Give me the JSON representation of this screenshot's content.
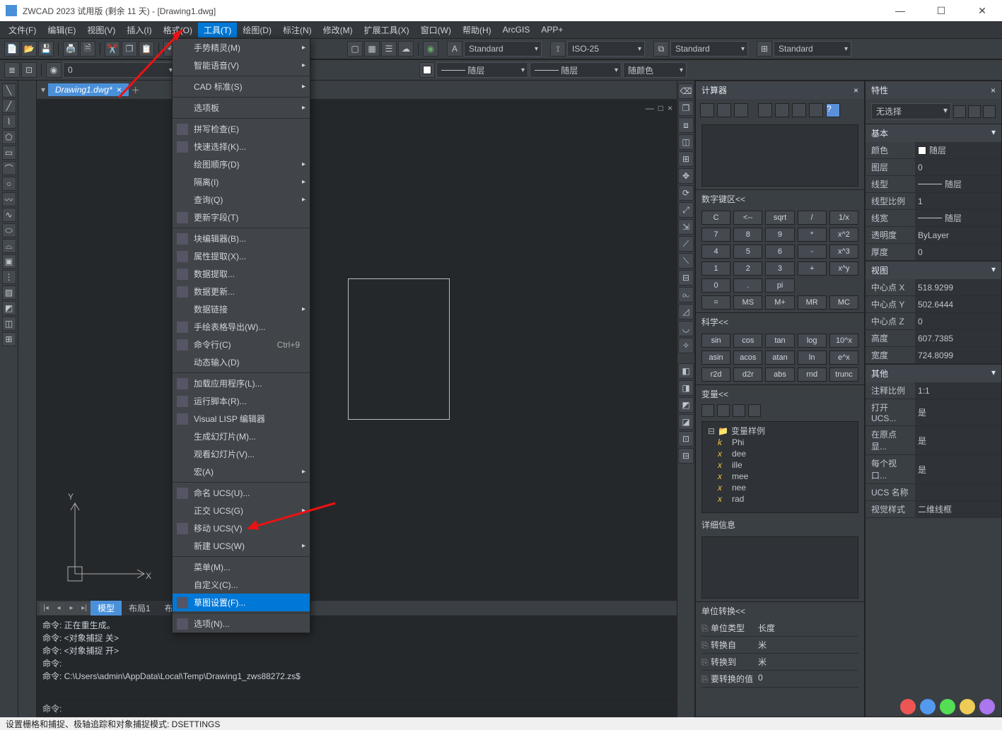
{
  "titlebar": {
    "app_title": "ZWCAD 2023 试用版 (剩余 11 天) - [Drawing1.dwg]"
  },
  "menubar": {
    "items": [
      "文件(F)",
      "编辑(E)",
      "视图(V)",
      "插入(I)",
      "格式(O)",
      "工具(T)",
      "绘图(D)",
      "标注(N)",
      "修改(M)",
      "扩展工具(X)",
      "窗口(W)",
      "帮助(H)",
      "ArcGIS",
      "APP+"
    ],
    "active_index": 5
  },
  "toolbar2": {
    "zero_swatch": "0",
    "style_combo1": "Standard",
    "style_combo2": "ISO-25",
    "style_combo3": "Standard",
    "style_combo4": "Standard"
  },
  "toolbar3": {
    "layer_combo": "随层",
    "layer_combo2": "随层",
    "color_combo": "随颜色"
  },
  "doc_tabs": {
    "tab1": "Drawing1.dwg*"
  },
  "canvas": {
    "ucs_x": "X",
    "ucs_y": "Y"
  },
  "dropdown": {
    "items": [
      {
        "label": "手势精灵(M)",
        "sub": true
      },
      {
        "label": "智能语音(V)",
        "sub": true
      },
      {
        "sep": true
      },
      {
        "label": "CAD 标准(S)",
        "sub": true
      },
      {
        "sep": true
      },
      {
        "label": "选项板",
        "sub": true
      },
      {
        "sep": true
      },
      {
        "label": "拼写检查(E)",
        "icon": true
      },
      {
        "label": "快速选择(K)...",
        "icon": true
      },
      {
        "label": "绘图顺序(D)",
        "sub": true
      },
      {
        "label": "隔离(I)",
        "sub": true
      },
      {
        "label": "查询(Q)",
        "sub": true
      },
      {
        "label": "更新字段(T)",
        "icon": true
      },
      {
        "sep": true
      },
      {
        "label": "块编辑器(B)...",
        "icon": true
      },
      {
        "label": "属性提取(X)...",
        "icon": true
      },
      {
        "label": "数据提取...",
        "icon": true
      },
      {
        "label": "数据更新...",
        "icon": true
      },
      {
        "label": "数据链接",
        "sub": true
      },
      {
        "label": "手绘表格导出(W)...",
        "icon": true
      },
      {
        "label": "命令行(C)",
        "icon": true,
        "shortcut": "Ctrl+9"
      },
      {
        "label": "动态输入(D)"
      },
      {
        "sep": true
      },
      {
        "label": "加载应用程序(L)...",
        "icon": true
      },
      {
        "label": "运行脚本(R)...",
        "icon": true
      },
      {
        "label": "Visual LISP 编辑器",
        "icon": true
      },
      {
        "label": "生成幻灯片(M)..."
      },
      {
        "label": "观看幻灯片(V)..."
      },
      {
        "label": "宏(A)",
        "sub": true
      },
      {
        "sep": true
      },
      {
        "label": "命名 UCS(U)...",
        "icon": true
      },
      {
        "label": "正交 UCS(G)",
        "sub": true
      },
      {
        "label": "移动 UCS(V)",
        "icon": true
      },
      {
        "label": "新建 UCS(W)",
        "sub": true
      },
      {
        "sep": true
      },
      {
        "label": "菜单(M)..."
      },
      {
        "label": "自定义(C)..."
      },
      {
        "label": "草图设置(F)...",
        "icon": true,
        "highlighted": true
      },
      {
        "sep": true
      },
      {
        "label": "选项(N)...",
        "icon": true
      }
    ]
  },
  "layout_tabs": {
    "tabs": [
      "模型",
      "布局1",
      "布局2"
    ],
    "active_index": 0
  },
  "command": {
    "lines": [
      "命令: 正在重生成。",
      "命令: <对象捕捉 关>",
      "命令: <对象捕捉 开>",
      "命令:",
      "命令: C:\\Users\\admin\\AppData\\Local\\Temp\\Drawing1_zws88272.zs$"
    ],
    "prompt": "命令:"
  },
  "statusbar": {
    "text": "设置栅格和捕捉、极轴追踪和对象捕捉模式: DSETTINGS"
  },
  "calc": {
    "title": "计算器",
    "display": "",
    "numpad_title": "数字键区<<",
    "numpad": [
      "C",
      "<--",
      "sqrt",
      "/",
      "1/x",
      "7",
      "8",
      "9",
      "*",
      "x^2",
      "4",
      "5",
      "6",
      "-",
      "x^3",
      "1",
      "2",
      "3",
      "+",
      "x^y",
      "0",
      ".",
      "pi",
      "",
      "",
      "=",
      "MS",
      "M+",
      "MR",
      "MC"
    ],
    "sci_title": "科学<<",
    "sci": [
      "sin",
      "cos",
      "tan",
      "log",
      "10^x",
      "asin",
      "acos",
      "atan",
      "ln",
      "e^x",
      "r2d",
      "d2r",
      "abs",
      "rnd",
      "trunc"
    ],
    "var_title": "变量<<",
    "var_x_label": "x*",
    "var_root": "变量样例",
    "vars": [
      {
        "sym": "k",
        "name": "Phi"
      },
      {
        "sym": "x",
        "name": "dee"
      },
      {
        "sym": "x",
        "name": "ille"
      },
      {
        "sym": "x",
        "name": "mee"
      },
      {
        "sym": "x",
        "name": "nee"
      },
      {
        "sym": "x",
        "name": "rad"
      }
    ],
    "detail_title": "详细信息",
    "unit_title": "单位转换<<",
    "unit_rows": [
      {
        "l": "单位类型",
        "v": "长度"
      },
      {
        "l": "转换自",
        "v": "米"
      },
      {
        "l": "转换到",
        "v": "米"
      },
      {
        "l": "要转换的值",
        "v": "0"
      }
    ]
  },
  "props": {
    "title": "特性",
    "selection": "无选择",
    "groups": [
      {
        "name": "基本",
        "rows": [
          {
            "l": "颜色",
            "v": "随层",
            "swatch": true
          },
          {
            "l": "图层",
            "v": "0"
          },
          {
            "l": "线型",
            "v": "随层",
            "line": true
          },
          {
            "l": "线型比例",
            "v": "1"
          },
          {
            "l": "线宽",
            "v": "随层",
            "line": true
          },
          {
            "l": "透明度",
            "v": "ByLayer"
          },
          {
            "l": "厚度",
            "v": "0"
          }
        ]
      },
      {
        "name": "视图",
        "rows": [
          {
            "l": "中心点 X",
            "v": "518.9299"
          },
          {
            "l": "中心点 Y",
            "v": "502.6444"
          },
          {
            "l": "中心点 Z",
            "v": "0"
          },
          {
            "l": "高度",
            "v": "607.7385"
          },
          {
            "l": "宽度",
            "v": "724.8099"
          }
        ]
      },
      {
        "name": "其他",
        "rows": [
          {
            "l": "注释比例",
            "v": "1:1"
          },
          {
            "l": "打开 UCS...",
            "v": "是"
          },
          {
            "l": "在原点显...",
            "v": "是"
          },
          {
            "l": "每个视口...",
            "v": "是"
          },
          {
            "l": "UCS 名称",
            "v": ""
          },
          {
            "l": "视觉样式",
            "v": "二维线框"
          }
        ]
      }
    ]
  }
}
